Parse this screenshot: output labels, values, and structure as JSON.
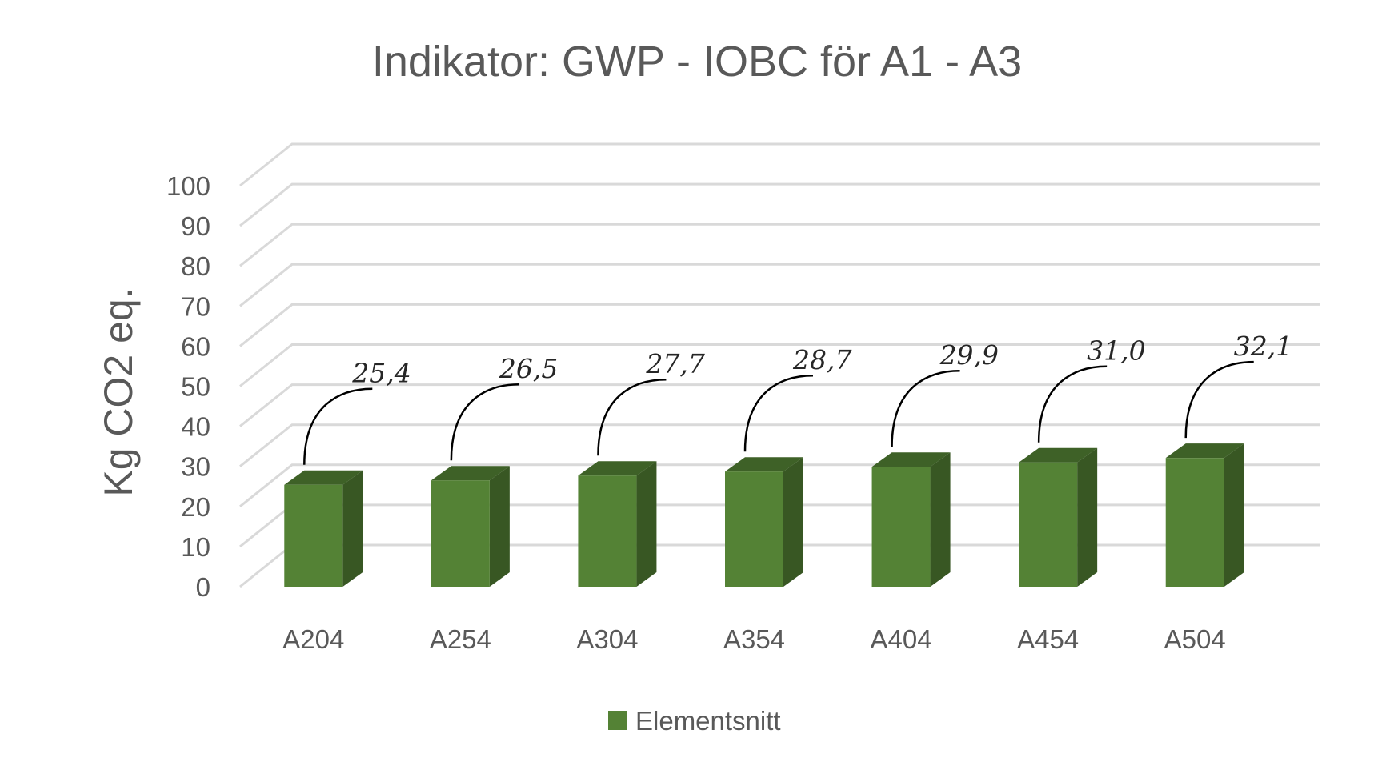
{
  "chart_data": {
    "type": "bar",
    "title": "Indikator: GWP - IOBC för A1 - A3",
    "ylabel": "Kg CO2 eq.",
    "xlabel": "",
    "categories": [
      "A204",
      "A254",
      "A304",
      "A354",
      "A404",
      "A454",
      "A504"
    ],
    "series": [
      {
        "name": "Elementsnitt",
        "values": [
          25.4,
          26.5,
          27.7,
          28.7,
          29.9,
          31.0,
          32.1
        ],
        "labels": [
          "25,4",
          "26,5",
          "27,7",
          "28,7",
          "29,9",
          "31,0",
          "32,1"
        ]
      }
    ],
    "ylim": [
      0,
      100
    ],
    "yticks": [
      0,
      10,
      20,
      30,
      40,
      50,
      60,
      70,
      80,
      90,
      100
    ],
    "grid": true,
    "legend": "bottom",
    "style": "3d-column",
    "colors": {
      "front": "#548235",
      "side": "#385723",
      "top": "#3e6127",
      "grid": "#d9d9d9",
      "text": "#595959"
    }
  }
}
